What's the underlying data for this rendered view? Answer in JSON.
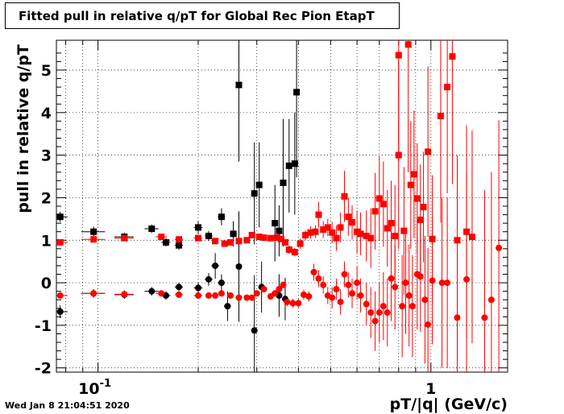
{
  "timestamp": "Wed Jan  8 21:04:51 2020",
  "chart_data": {
    "type": "scatter",
    "title": "Fitted pull in relative q/pT for Global Rec Pion EtapT",
    "xlabel": "pT/|q| (GeV/c)",
    "ylabel": "pull in relative q/pT",
    "x_scale": "log",
    "xlim": [
      0.075,
      1.7
    ],
    "ylim": [
      -2.1,
      5.7
    ],
    "yticks": [
      -2,
      -1,
      0,
      1,
      2,
      3,
      4,
      5
    ],
    "xticks_major": [
      {
        "value": 0.1,
        "base": "10",
        "exp": "-1"
      },
      {
        "value": 1,
        "label": "1"
      }
    ],
    "grid": true,
    "colors": {
      "black_series": "#000000",
      "red_series": "#ff0000"
    },
    "series": [
      {
        "marker": "square",
        "color": "#000000",
        "points": [
          [
            0.077,
            1.55,
            0.004,
            0.12
          ],
          [
            0.097,
            1.2,
            0.008,
            0.12
          ],
          [
            0.12,
            1.08,
            0.008,
            0.1
          ],
          [
            0.145,
            1.27,
            0.007,
            0.1
          ],
          [
            0.16,
            0.95,
            0.005,
            0.1
          ],
          [
            0.175,
            0.88,
            0.005,
            0.1
          ],
          [
            0.2,
            1.3,
            0.006,
            0.15
          ],
          [
            0.215,
            1.1,
            0.006,
            0.12
          ],
          [
            0.235,
            1.55,
            0.006,
            0.2
          ],
          [
            0.255,
            1.15,
            0.006,
            0.3
          ],
          [
            0.265,
            4.65,
            0.004,
            1.8
          ],
          [
            0.295,
            2.1,
            0.004,
            1.2
          ],
          [
            0.305,
            2.3,
            0.004,
            1.0
          ],
          [
            0.34,
            1.4,
            0.004,
            0.9
          ],
          [
            0.35,
            1.22,
            0.004,
            0.6
          ],
          [
            0.36,
            2.35,
            0.004,
            1.5
          ],
          [
            0.375,
            2.75,
            0.004,
            1.1
          ],
          [
            0.39,
            2.8,
            0.004,
            1.2
          ],
          [
            0.395,
            4.48,
            0.004,
            2.0
          ]
        ]
      },
      {
        "marker": "circle",
        "color": "#000000",
        "points": [
          [
            0.077,
            -0.68,
            0.004,
            0.15
          ],
          [
            0.097,
            -0.25,
            0.008,
            0.1
          ],
          [
            0.12,
            -0.28,
            0.008,
            0.1
          ],
          [
            0.145,
            -0.2,
            0.007,
            0.1
          ],
          [
            0.16,
            -0.3,
            0.005,
            0.1
          ],
          [
            0.175,
            -0.1,
            0.005,
            0.1
          ],
          [
            0.2,
            -0.12,
            0.006,
            0.12
          ],
          [
            0.215,
            0.08,
            0.006,
            0.15
          ],
          [
            0.225,
            0.4,
            0.006,
            0.3
          ],
          [
            0.235,
            0.0,
            0.006,
            0.2
          ],
          [
            0.245,
            -0.55,
            0.006,
            0.35
          ],
          [
            0.265,
            0.38,
            0.004,
            1.3
          ],
          [
            0.295,
            -1.12,
            0.004,
            1.3
          ],
          [
            0.31,
            -0.1,
            0.004,
            0.6
          ],
          [
            0.35,
            -0.3,
            0.004,
            0.5
          ],
          [
            0.365,
            -0.38,
            0.004,
            0.5
          ]
        ]
      },
      {
        "marker": "square",
        "color": "#ff0000",
        "points": [
          [
            0.077,
            0.95,
            0.004,
            0.05
          ],
          [
            0.097,
            1.02,
            0.008,
            0.05
          ],
          [
            0.12,
            1.05,
            0.008,
            0.05
          ],
          [
            0.155,
            1.08,
            0.006,
            0.05
          ],
          [
            0.175,
            1.02,
            0.005,
            0.05
          ],
          [
            0.2,
            1.05,
            0.006,
            0.05
          ],
          [
            0.225,
            0.98,
            0.005,
            0.05
          ],
          [
            0.24,
            0.92,
            0.005,
            0.05
          ],
          [
            0.25,
            0.95,
            0.005,
            0.06
          ],
          [
            0.265,
            0.98,
            0.004,
            0.06
          ],
          [
            0.28,
            1.0,
            0.004,
            0.06
          ],
          [
            0.29,
            1.12,
            0.004,
            0.06
          ],
          [
            0.305,
            1.08,
            0.004,
            0.06
          ],
          [
            0.315,
            1.06,
            0.004,
            0.06
          ],
          [
            0.33,
            1.05,
            0.004,
            0.07
          ],
          [
            0.345,
            1.06,
            0.004,
            0.07
          ],
          [
            0.355,
            1.03,
            0.004,
            0.07
          ],
          [
            0.365,
            0.95,
            0.004,
            0.08
          ],
          [
            0.375,
            0.78,
            0.004,
            0.1
          ],
          [
            0.39,
            0.72,
            0.004,
            0.1
          ],
          [
            0.405,
            0.92,
            0.004,
            0.12
          ],
          [
            0.42,
            1.12,
            0.004,
            0.12
          ],
          [
            0.435,
            1.18,
            0.004,
            0.15
          ],
          [
            0.45,
            1.2,
            0.004,
            0.15
          ],
          [
            0.46,
            1.6,
            0.004,
            0.3
          ],
          [
            0.475,
            1.25,
            0.004,
            0.2
          ],
          [
            0.49,
            1.3,
            0.004,
            0.2
          ],
          [
            0.505,
            1.18,
            0.004,
            0.25
          ],
          [
            0.52,
            1.05,
            0.004,
            0.3
          ],
          [
            0.535,
            1.3,
            0.004,
            0.35
          ],
          [
            0.55,
            2.03,
            0.004,
            0.6
          ],
          [
            0.565,
            1.55,
            0.004,
            0.45
          ],
          [
            0.58,
            1.42,
            0.004,
            0.4
          ],
          [
            0.6,
            1.2,
            0.004,
            0.5
          ],
          [
            0.615,
            1.15,
            0.004,
            0.5
          ],
          [
            0.64,
            1.1,
            0.004,
            0.6
          ],
          [
            0.66,
            1.05,
            0.004,
            0.7
          ],
          [
            0.68,
            1.68,
            0.004,
            0.9
          ],
          [
            0.7,
            1.98,
            0.004,
            1.0
          ],
          [
            0.72,
            1.85,
            0.004,
            1.0
          ],
          [
            0.74,
            1.28,
            0.004,
            0.9
          ],
          [
            0.76,
            1.4,
            0.004,
            1.0
          ],
          [
            0.78,
            1.1,
            0.004,
            1.2
          ],
          [
            0.8,
            5.35,
            0.004,
            2.5
          ],
          [
            0.8,
            3.0,
            0.004,
            2.2
          ],
          [
            0.83,
            1.22,
            0.004,
            1.5
          ],
          [
            0.855,
            5.6,
            0.004,
            3.0
          ],
          [
            0.87,
            2.3,
            0.004,
            1.5
          ],
          [
            0.89,
            2.55,
            0.004,
            1.5
          ],
          [
            0.91,
            1.98,
            0.004,
            1.3
          ],
          [
            0.93,
            1.48,
            0.004,
            1.3
          ],
          [
            0.95,
            1.78,
            0.004,
            1.3
          ],
          [
            0.98,
            3.08,
            0.004,
            2.0
          ],
          [
            1.01,
            1.03,
            0.004,
            1.5
          ],
          [
            1.07,
            3.92,
            0.005,
            2.5
          ],
          [
            1.12,
            4.6,
            0.005,
            2.5
          ],
          [
            1.16,
            5.32,
            0.005,
            3.0
          ],
          [
            1.2,
            1.0,
            0.005,
            2.0
          ],
          [
            1.28,
            1.2,
            0.005,
            2.5
          ],
          [
            1.33,
            1.08,
            0.005,
            2.5
          ]
        ]
      },
      {
        "marker": "circle",
        "color": "#ff0000",
        "points": [
          [
            0.077,
            -0.3,
            0.004,
            0.05
          ],
          [
            0.097,
            -0.25,
            0.008,
            0.05
          ],
          [
            0.12,
            -0.27,
            0.008,
            0.05
          ],
          [
            0.155,
            -0.25,
            0.006,
            0.05
          ],
          [
            0.175,
            -0.28,
            0.005,
            0.05
          ],
          [
            0.2,
            -0.3,
            0.006,
            0.05
          ],
          [
            0.215,
            -0.3,
            0.005,
            0.05
          ],
          [
            0.225,
            -0.3,
            0.005,
            0.05
          ],
          [
            0.235,
            -0.25,
            0.005,
            0.06
          ],
          [
            0.25,
            -0.3,
            0.005,
            0.06
          ],
          [
            0.265,
            -0.35,
            0.004,
            0.06
          ],
          [
            0.28,
            -0.35,
            0.004,
            0.07
          ],
          [
            0.29,
            -0.35,
            0.004,
            0.07
          ],
          [
            0.3,
            -0.25,
            0.004,
            0.07
          ],
          [
            0.315,
            -0.15,
            0.004,
            0.08
          ],
          [
            0.33,
            -0.32,
            0.004,
            0.08
          ],
          [
            0.34,
            -0.25,
            0.004,
            0.08
          ],
          [
            0.35,
            -0.15,
            0.004,
            0.08
          ],
          [
            0.36,
            -0.05,
            0.004,
            0.08
          ],
          [
            0.37,
            -0.45,
            0.004,
            0.1
          ],
          [
            0.385,
            -0.48,
            0.004,
            0.1
          ],
          [
            0.4,
            -0.48,
            0.004,
            0.1
          ],
          [
            0.415,
            -0.28,
            0.004,
            0.12
          ],
          [
            0.43,
            -0.32,
            0.004,
            0.12
          ],
          [
            0.445,
            0.25,
            0.004,
            0.2
          ],
          [
            0.46,
            0.1,
            0.004,
            0.2
          ],
          [
            0.475,
            -0.05,
            0.004,
            0.2
          ],
          [
            0.49,
            -0.3,
            0.004,
            0.2
          ],
          [
            0.505,
            -0.35,
            0.004,
            0.25
          ],
          [
            0.52,
            -0.15,
            0.004,
            0.25
          ],
          [
            0.535,
            -0.45,
            0.004,
            0.3
          ],
          [
            0.55,
            0.2,
            0.004,
            0.3
          ],
          [
            0.565,
            -0.05,
            0.004,
            0.3
          ],
          [
            0.58,
            -0.25,
            0.004,
            0.35
          ],
          [
            0.6,
            0.0,
            0.004,
            0.4
          ],
          [
            0.615,
            -0.3,
            0.004,
            0.4
          ],
          [
            0.64,
            -0.5,
            0.004,
            0.5
          ],
          [
            0.66,
            -0.7,
            0.004,
            0.6
          ],
          [
            0.68,
            -0.9,
            0.004,
            0.7
          ],
          [
            0.7,
            -0.7,
            0.004,
            0.7
          ],
          [
            0.72,
            -0.55,
            0.004,
            0.8
          ],
          [
            0.74,
            -0.7,
            0.004,
            0.8
          ],
          [
            0.76,
            0.1,
            0.004,
            1.0
          ],
          [
            0.78,
            -0.1,
            0.004,
            1.0
          ],
          [
            0.82,
            -0.55,
            0.004,
            1.2
          ],
          [
            0.84,
            0.0,
            0.004,
            1.2
          ],
          [
            0.86,
            -0.3,
            0.004,
            1.2
          ],
          [
            0.88,
            -0.55,
            0.004,
            1.2
          ],
          [
            0.91,
            0.2,
            0.004,
            1.3
          ],
          [
            0.93,
            0.15,
            0.004,
            1.3
          ],
          [
            0.96,
            -0.4,
            0.004,
            1.5
          ],
          [
            0.98,
            -0.98,
            0.004,
            1.8
          ],
          [
            1.01,
            0.05,
            0.004,
            1.5
          ],
          [
            1.08,
            0.0,
            0.005,
            2.0
          ],
          [
            1.12,
            0.0,
            0.005,
            2.0
          ],
          [
            1.2,
            -0.82,
            0.005,
            2.5
          ],
          [
            1.28,
            0.08,
            0.005,
            2.5
          ],
          [
            1.45,
            -0.82,
            0.005,
            3.0
          ],
          [
            1.52,
            -0.4,
            0.005,
            3.0
          ],
          [
            1.6,
            0.82,
            0.005,
            3.0
          ]
        ]
      }
    ]
  }
}
